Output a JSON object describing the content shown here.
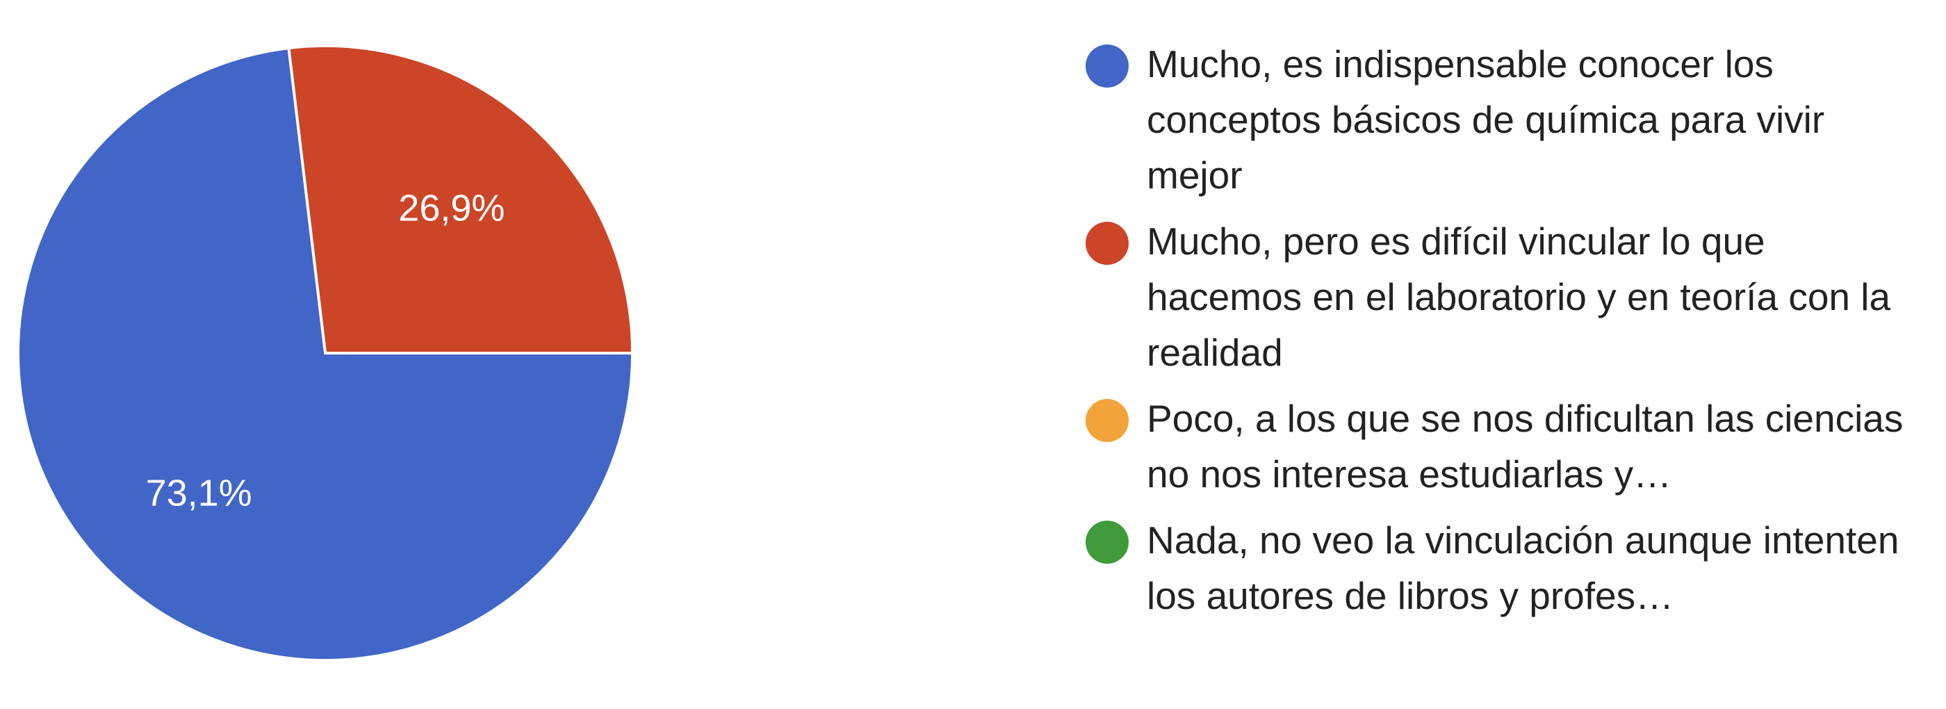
{
  "chart_data": {
    "type": "pie",
    "slices": [
      {
        "label": "Mucho, es indispensable conocer los conceptos básicos de química para vivir mejor",
        "value": 73.1,
        "value_label": "73,1%",
        "color": "#4166c7"
      },
      {
        "label": "Mucho, pero es difícil vincular lo que hacemos en el laboratorio y en teoría con la realidad",
        "value": 26.9,
        "value_label": "26,9%",
        "color": "#cc4527"
      },
      {
        "label": "Poco, a los que se nos dificultan las ciencias no nos interesa estudiarlas y…",
        "value": 0,
        "value_label": "",
        "color": "#f2a33a"
      },
      {
        "label": "Nada, no veo la vinculación aunque intenten los autores de libros y profes…",
        "value": 0,
        "value_label": "",
        "color": "#3f9a3a"
      }
    ],
    "legend_position": "right",
    "start": "top",
    "direction": "clockwise"
  }
}
